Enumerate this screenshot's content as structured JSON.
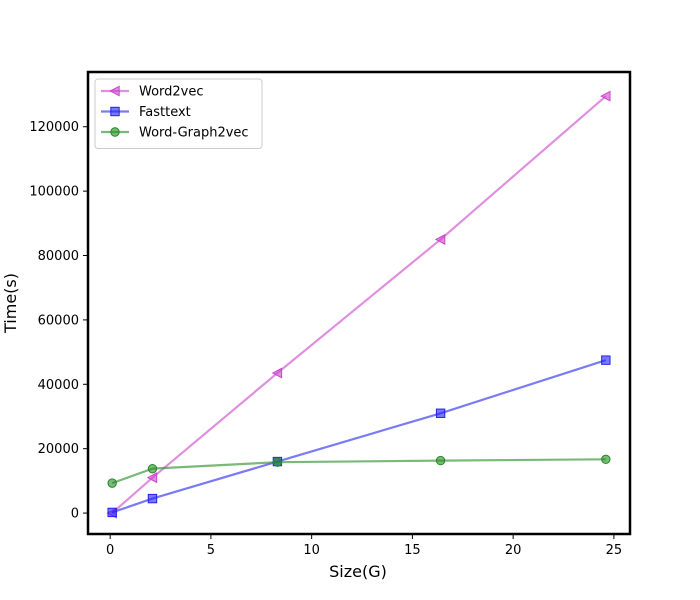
{
  "chart_data": {
    "type": "line",
    "xlabel": "Size(G)",
    "ylabel": "Time(s)",
    "xlim": [
      -1.1,
      25.8
    ],
    "ylim": [
      -6500,
      137000
    ],
    "xticks": [
      0,
      5,
      10,
      15,
      20,
      25
    ],
    "yticks": [
      0,
      20000,
      40000,
      60000,
      80000,
      100000,
      120000
    ],
    "grid": false,
    "legend_position": "top-left",
    "series": [
      {
        "name": "Word2vec",
        "color": "#cc44cc",
        "marker": "triangle-left",
        "x": [
          0.1,
          2.1,
          8.3,
          16.4,
          24.6
        ],
        "y": [
          0,
          11000,
          43500,
          85000,
          129500
        ]
      },
      {
        "name": "Fasttext",
        "color": "#2222ee",
        "marker": "square",
        "x": [
          0.1,
          2.1,
          8.3,
          16.4,
          24.6
        ],
        "y": [
          200,
          4500,
          16000,
          31000,
          47500
        ]
      },
      {
        "name": "Word-Graph2vec",
        "color": "#228b22",
        "marker": "circle",
        "x": [
          0.1,
          2.1,
          8.3,
          16.4,
          24.6
        ],
        "y": [
          9300,
          13800,
          15800,
          16300,
          16700
        ]
      }
    ]
  }
}
